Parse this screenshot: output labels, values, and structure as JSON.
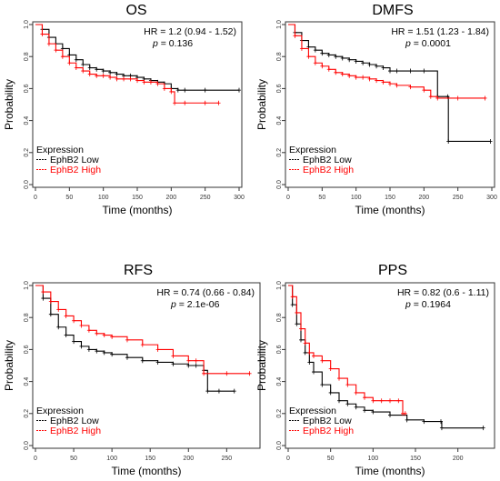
{
  "chart_data": [
    {
      "type": "line",
      "title": "OS",
      "xlabel": "Time (months)",
      "ylabel": "Probability",
      "xlim": [
        0,
        300
      ],
      "ylim": [
        0,
        1
      ],
      "xticks": [
        0,
        50,
        100,
        150,
        200,
        250,
        300
      ],
      "yticks": [
        0.0,
        0.2,
        0.4,
        0.6,
        0.8,
        1.0
      ],
      "stats": {
        "hr_text": "HR = 1.2 (0.94 - 1.52)",
        "p_label": "p",
        "p_text": " = 0.136"
      },
      "legend": {
        "title": "Expression",
        "position": "bottom-left"
      },
      "series": [
        {
          "name": "EphB2 Low",
          "color": "#000000",
          "x": [
            0,
            10,
            20,
            30,
            40,
            50,
            60,
            70,
            80,
            90,
            100,
            110,
            120,
            130,
            140,
            150,
            160,
            170,
            180,
            190,
            200,
            210,
            220,
            250,
            300
          ],
          "y": [
            1.0,
            0.97,
            0.92,
            0.88,
            0.85,
            0.81,
            0.78,
            0.75,
            0.73,
            0.72,
            0.71,
            0.7,
            0.69,
            0.68,
            0.68,
            0.67,
            0.66,
            0.65,
            0.64,
            0.63,
            0.6,
            0.59,
            0.59,
            0.59,
            0.59
          ]
        },
        {
          "name": "EphB2 High",
          "color": "#ff0000",
          "x": [
            0,
            10,
            20,
            30,
            40,
            50,
            60,
            70,
            80,
            90,
            100,
            110,
            120,
            130,
            140,
            150,
            160,
            170,
            180,
            190,
            200,
            205,
            220,
            250,
            270
          ],
          "y": [
            1.0,
            0.94,
            0.88,
            0.84,
            0.8,
            0.76,
            0.73,
            0.71,
            0.69,
            0.68,
            0.68,
            0.67,
            0.66,
            0.66,
            0.66,
            0.65,
            0.64,
            0.64,
            0.63,
            0.6,
            0.58,
            0.51,
            0.51,
            0.51,
            0.51
          ]
        }
      ]
    },
    {
      "type": "line",
      "title": "DMFS",
      "xlabel": "Time (months)",
      "ylabel": "Probability",
      "xlim": [
        0,
        300
      ],
      "ylim": [
        0,
        1
      ],
      "xticks": [
        0,
        50,
        100,
        150,
        200,
        250,
        300
      ],
      "yticks": [
        0.0,
        0.2,
        0.4,
        0.6,
        0.8,
        1.0
      ],
      "stats": {
        "hr_text": "HR = 1.51 (1.23 - 1.84)",
        "p_label": "p",
        "p_text": " = 0.0001"
      },
      "legend": {
        "title": "Expression",
        "position": "bottom-left"
      },
      "series": [
        {
          "name": "EphB2 Low",
          "color": "#000000",
          "x": [
            0,
            10,
            20,
            30,
            40,
            50,
            60,
            70,
            80,
            90,
            100,
            110,
            120,
            130,
            140,
            150,
            160,
            180,
            200,
            220,
            235,
            236,
            298
          ],
          "y": [
            1.0,
            0.95,
            0.9,
            0.86,
            0.84,
            0.82,
            0.81,
            0.8,
            0.79,
            0.78,
            0.77,
            0.76,
            0.75,
            0.74,
            0.73,
            0.71,
            0.71,
            0.71,
            0.71,
            0.55,
            0.55,
            0.27,
            0.27
          ]
        },
        {
          "name": "EphB2 High",
          "color": "#ff0000",
          "x": [
            0,
            10,
            20,
            30,
            40,
            50,
            60,
            70,
            80,
            90,
            100,
            110,
            120,
            130,
            140,
            150,
            160,
            180,
            200,
            210,
            220,
            250,
            290
          ],
          "y": [
            1.0,
            0.93,
            0.85,
            0.8,
            0.76,
            0.74,
            0.72,
            0.7,
            0.69,
            0.68,
            0.67,
            0.67,
            0.66,
            0.65,
            0.64,
            0.63,
            0.62,
            0.61,
            0.59,
            0.55,
            0.54,
            0.54,
            0.54
          ]
        }
      ]
    },
    {
      "type": "line",
      "title": "RFS",
      "xlabel": "Time (months)",
      "ylabel": "Probability",
      "xlim": [
        0,
        290
      ],
      "ylim": [
        0,
        1
      ],
      "xticks": [
        0,
        50,
        100,
        150,
        200,
        250
      ],
      "yticks": [
        0.0,
        0.2,
        0.4,
        0.6,
        0.8,
        1.0
      ],
      "stats": {
        "hr_text": "HR = 0.74 (0.66 - 0.84)",
        "p_label": "p",
        "p_text": " = 2.1e-06"
      },
      "legend": {
        "title": "Expression",
        "position": "bottom-left"
      },
      "series": [
        {
          "name": "EphB2 Low",
          "color": "#000000",
          "x": [
            0,
            10,
            20,
            30,
            40,
            50,
            60,
            70,
            80,
            90,
            100,
            120,
            140,
            160,
            180,
            200,
            210,
            220,
            225,
            240,
            260
          ],
          "y": [
            1.0,
            0.92,
            0.82,
            0.74,
            0.69,
            0.65,
            0.62,
            0.6,
            0.59,
            0.58,
            0.57,
            0.55,
            0.53,
            0.52,
            0.51,
            0.5,
            0.5,
            0.47,
            0.34,
            0.34,
            0.34
          ]
        },
        {
          "name": "EphB2 High",
          "color": "#ff0000",
          "x": [
            0,
            10,
            20,
            30,
            40,
            50,
            60,
            70,
            80,
            90,
            100,
            120,
            140,
            160,
            180,
            200,
            210,
            220,
            250,
            280
          ],
          "y": [
            1.0,
            0.96,
            0.9,
            0.85,
            0.81,
            0.78,
            0.75,
            0.72,
            0.7,
            0.69,
            0.68,
            0.66,
            0.63,
            0.6,
            0.56,
            0.53,
            0.53,
            0.45,
            0.45,
            0.45
          ]
        }
      ]
    },
    {
      "type": "line",
      "title": "PPS",
      "xlabel": "Time (months)",
      "ylabel": "Probability",
      "xlim": [
        0,
        240
      ],
      "ylim": [
        0,
        1
      ],
      "xticks": [
        0,
        50,
        100,
        150,
        200
      ],
      "yticks": [
        0.0,
        0.2,
        0.4,
        0.6,
        0.8,
        1.0
      ],
      "stats": {
        "hr_text": "HR = 0.82 (0.6 - 1.11)",
        "p_label": "p",
        "p_text": " = 0.1964"
      },
      "legend": {
        "title": "Expression",
        "position": "bottom-left"
      },
      "series": [
        {
          "name": "EphB2 Low",
          "color": "#000000",
          "x": [
            0,
            5,
            10,
            15,
            20,
            25,
            30,
            40,
            50,
            60,
            70,
            80,
            90,
            100,
            120,
            140,
            160,
            180,
            181,
            230
          ],
          "y": [
            1.0,
            0.88,
            0.76,
            0.66,
            0.58,
            0.52,
            0.46,
            0.38,
            0.33,
            0.28,
            0.26,
            0.24,
            0.22,
            0.21,
            0.19,
            0.16,
            0.15,
            0.15,
            0.11,
            0.11
          ]
        },
        {
          "name": "EphB2 High",
          "color": "#ff0000",
          "x": [
            0,
            5,
            10,
            15,
            20,
            25,
            30,
            40,
            50,
            60,
            70,
            80,
            90,
            100,
            110,
            120,
            130,
            135,
            138
          ],
          "y": [
            1.0,
            0.93,
            0.83,
            0.73,
            0.64,
            0.58,
            0.56,
            0.53,
            0.48,
            0.42,
            0.38,
            0.33,
            0.3,
            0.28,
            0.28,
            0.28,
            0.28,
            0.2,
            0.2
          ]
        }
      ]
    }
  ]
}
